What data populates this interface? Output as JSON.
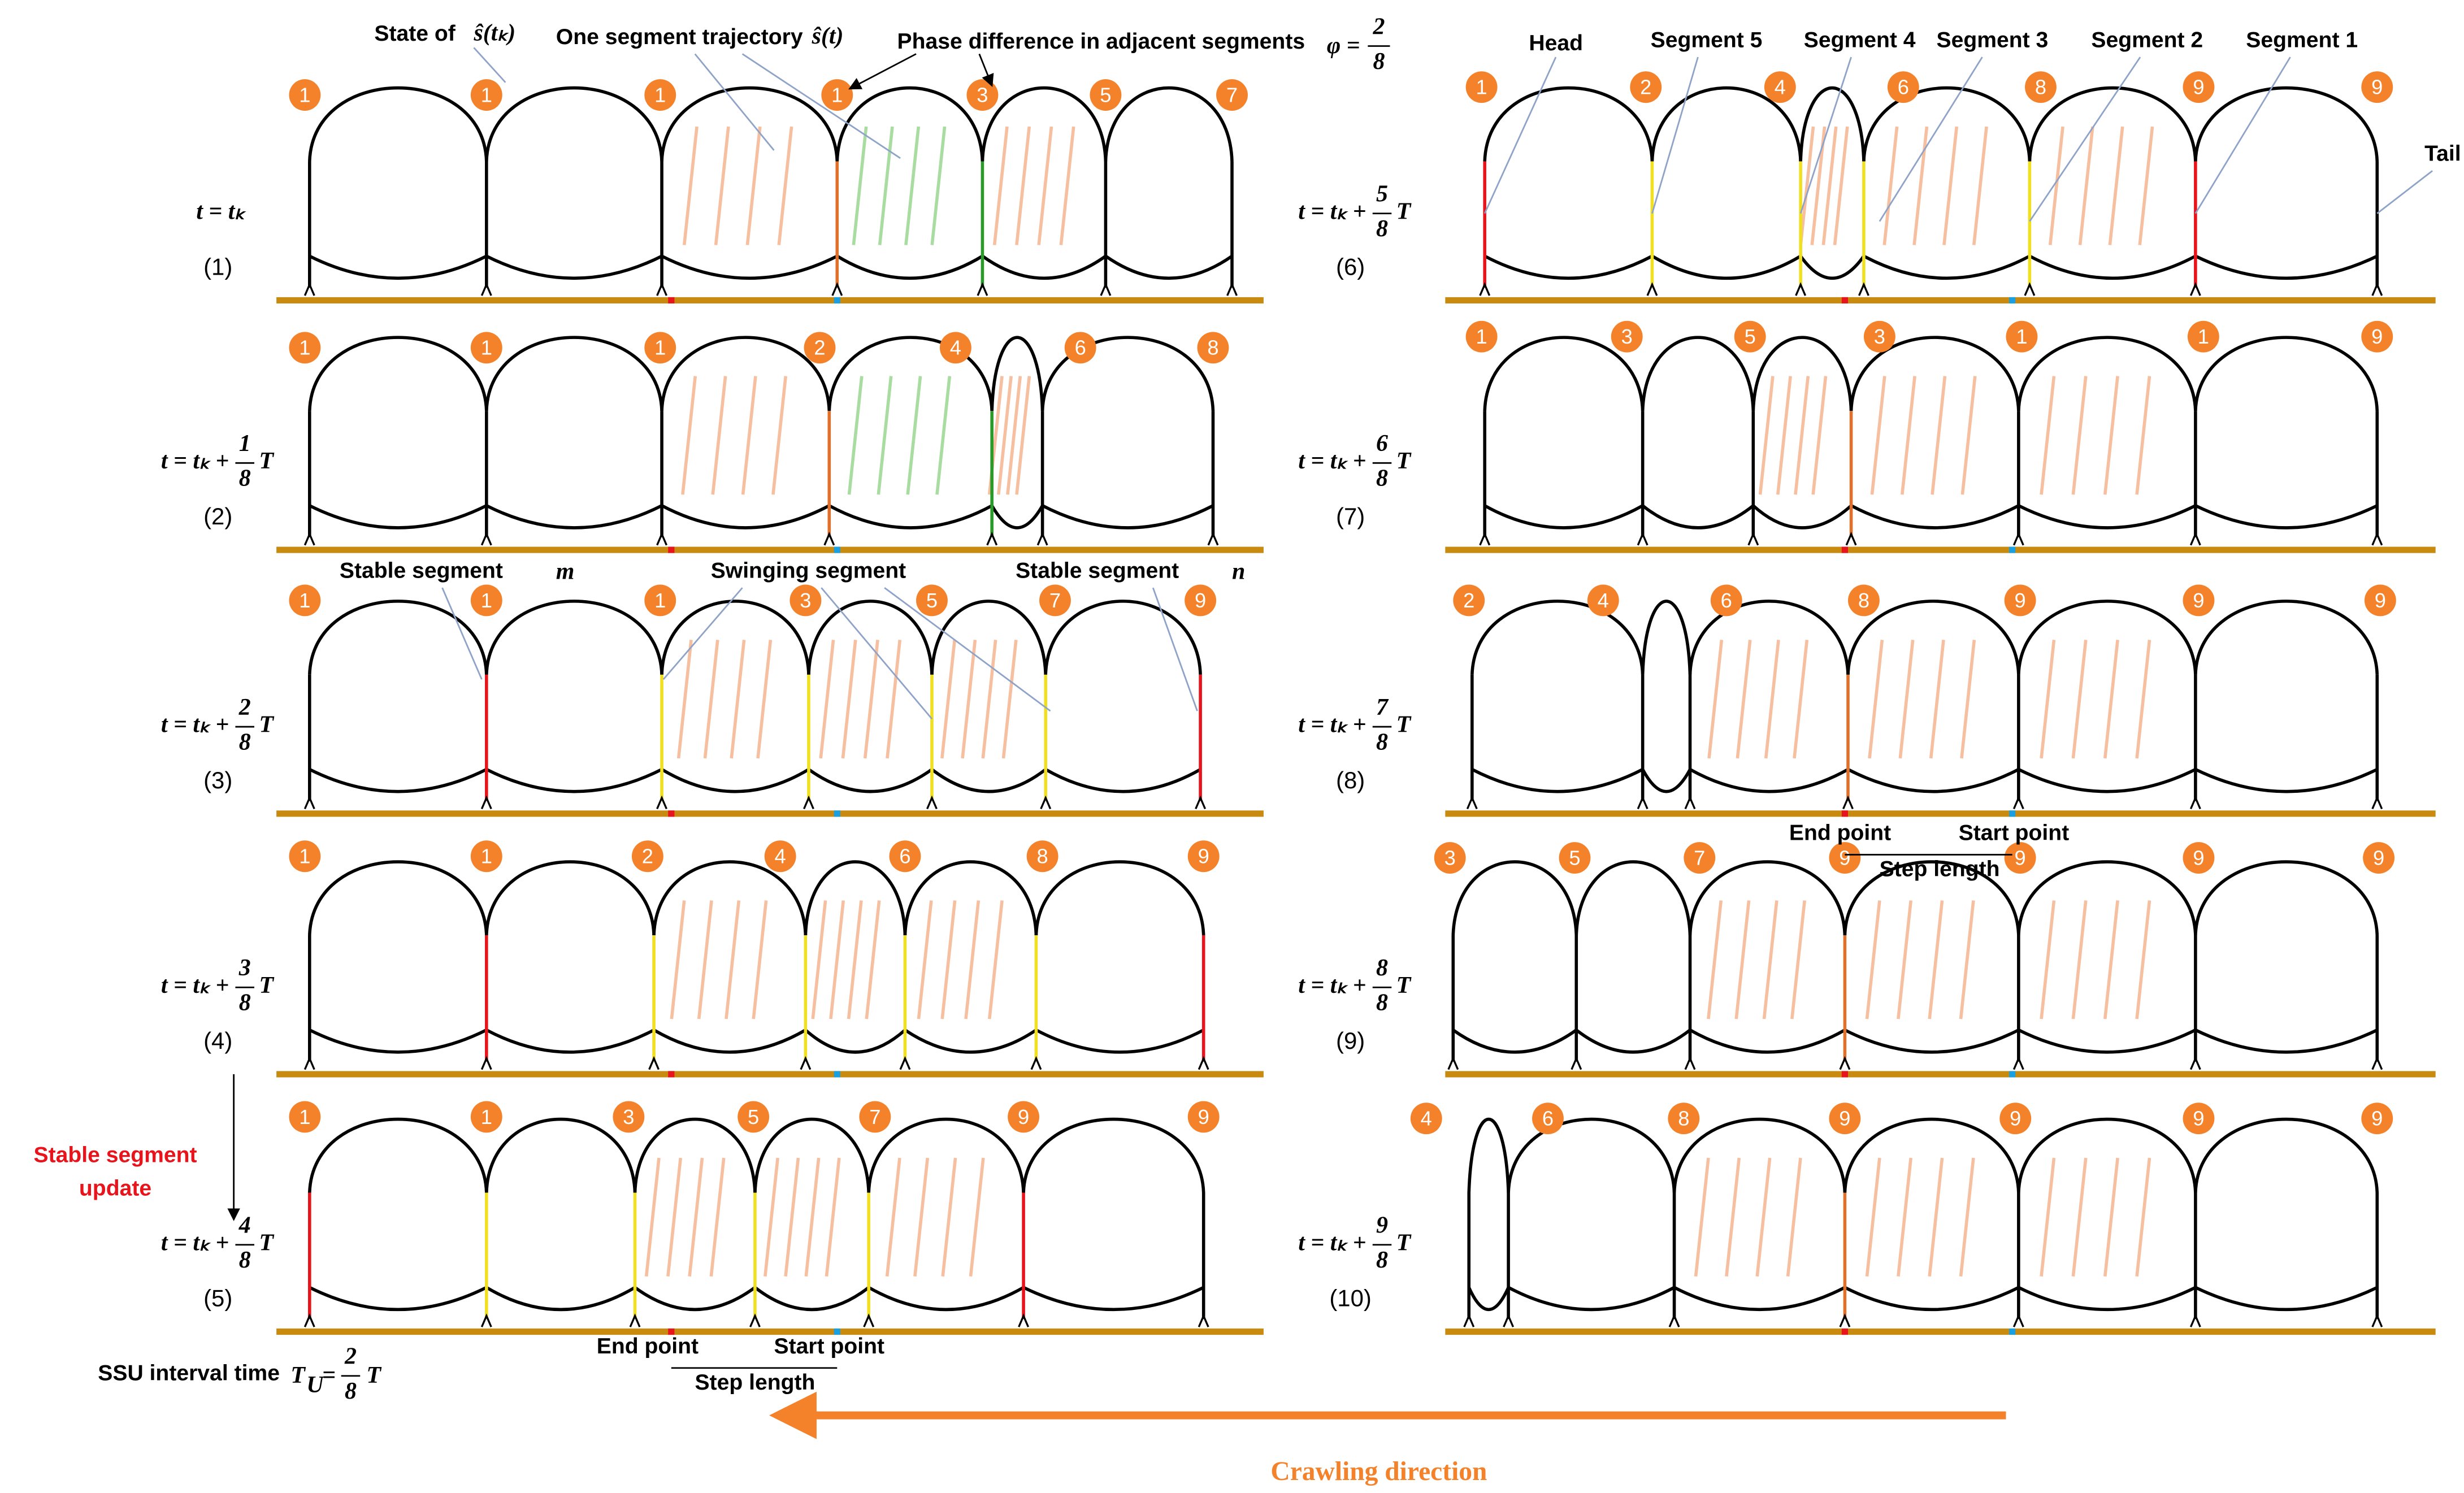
{
  "annotations": {
    "state_label": "State of",
    "state_symbol": "ŝ(tₖ)",
    "trajectory_label": "One segment trajectory",
    "trajectory_symbol": "ŝ(t)",
    "phase_label": "Phase difference in adjacent segments",
    "phase_lhs": "φ =",
    "phase_num": "2",
    "phase_den": "8",
    "head": "Head",
    "segment_5": "Segment 5",
    "segment_4": "Segment 4",
    "segment_3": "Segment 3",
    "segment_2": "Segment 2",
    "segment_1": "Segment 1",
    "tail": "Tail",
    "stable_m": "Stable segment",
    "stable_m_var": "m",
    "swinging": "Swinging segment",
    "stable_n": "Stable segment",
    "stable_n_var": "n",
    "update_line1": "Stable segment",
    "update_line2": "update",
    "end_point_left": "End point",
    "start_point_left": "Start point",
    "step_length_left": "Step length",
    "end_point_right": "End point",
    "start_point_right": "Start point",
    "step_length_right": "Step length",
    "ssu_label": "SSU interval time",
    "ssu_T": "T",
    "ssu_sub": "U",
    "ssu_eq": "=",
    "ssu_num": "2",
    "ssu_den": "8",
    "ssu_unit": "T",
    "crawling": "Crawling direction"
  },
  "panels": [
    {
      "label": "(1)",
      "time": {
        "lhs": "t = tₖ"
      },
      "states": [
        1,
        1,
        1,
        1,
        3,
        5,
        7
      ]
    },
    {
      "label": "(2)",
      "time": {
        "lhs": "t = tₖ +",
        "num": "1",
        "den": "8",
        "unit": "T"
      },
      "states": [
        1,
        1,
        1,
        2,
        4,
        6,
        8
      ]
    },
    {
      "label": "(3)",
      "time": {
        "lhs": "t = tₖ +",
        "num": "2",
        "den": "8",
        "unit": "T"
      },
      "states": [
        1,
        1,
        1,
        3,
        5,
        7,
        9
      ]
    },
    {
      "label": "(4)",
      "time": {
        "lhs": "t = tₖ +",
        "num": "3",
        "den": "8",
        "unit": "T"
      },
      "states": [
        1,
        1,
        2,
        4,
        6,
        8,
        9
      ]
    },
    {
      "label": "(5)",
      "time": {
        "lhs": "t = tₖ +",
        "num": "4",
        "den": "8",
        "unit": "T"
      },
      "states": [
        1,
        1,
        3,
        5,
        7,
        9,
        9
      ]
    },
    {
      "label": "(6)",
      "time": {
        "lhs": "t = tₖ +",
        "num": "5",
        "den": "8",
        "unit": "T"
      },
      "states": [
        1,
        2,
        4,
        6,
        8,
        9,
        9
      ]
    },
    {
      "label": "(7)",
      "time": {
        "lhs": "t = tₖ +",
        "num": "6",
        "den": "8",
        "unit": "T"
      },
      "states": [
        1,
        3,
        5,
        3,
        1,
        1,
        9
      ]
    },
    {
      "label": "(8)",
      "time": {
        "lhs": "t = tₖ +",
        "num": "7",
        "den": "8",
        "unit": "T"
      },
      "states": [
        2,
        4,
        6,
        8,
        9,
        9,
        9
      ]
    },
    {
      "label": "(9)",
      "time": {
        "lhs": "t = tₖ +",
        "num": "8",
        "den": "8",
        "unit": "T"
      },
      "states": [
        3,
        5,
        7,
        9,
        9,
        9,
        9
      ]
    },
    {
      "label": "(10)",
      "time": {
        "lhs": "t = tₖ +",
        "num": "9",
        "den": "8",
        "unit": "T"
      },
      "states": [
        4,
        6,
        8,
        9,
        9,
        9,
        9
      ]
    }
  ]
}
